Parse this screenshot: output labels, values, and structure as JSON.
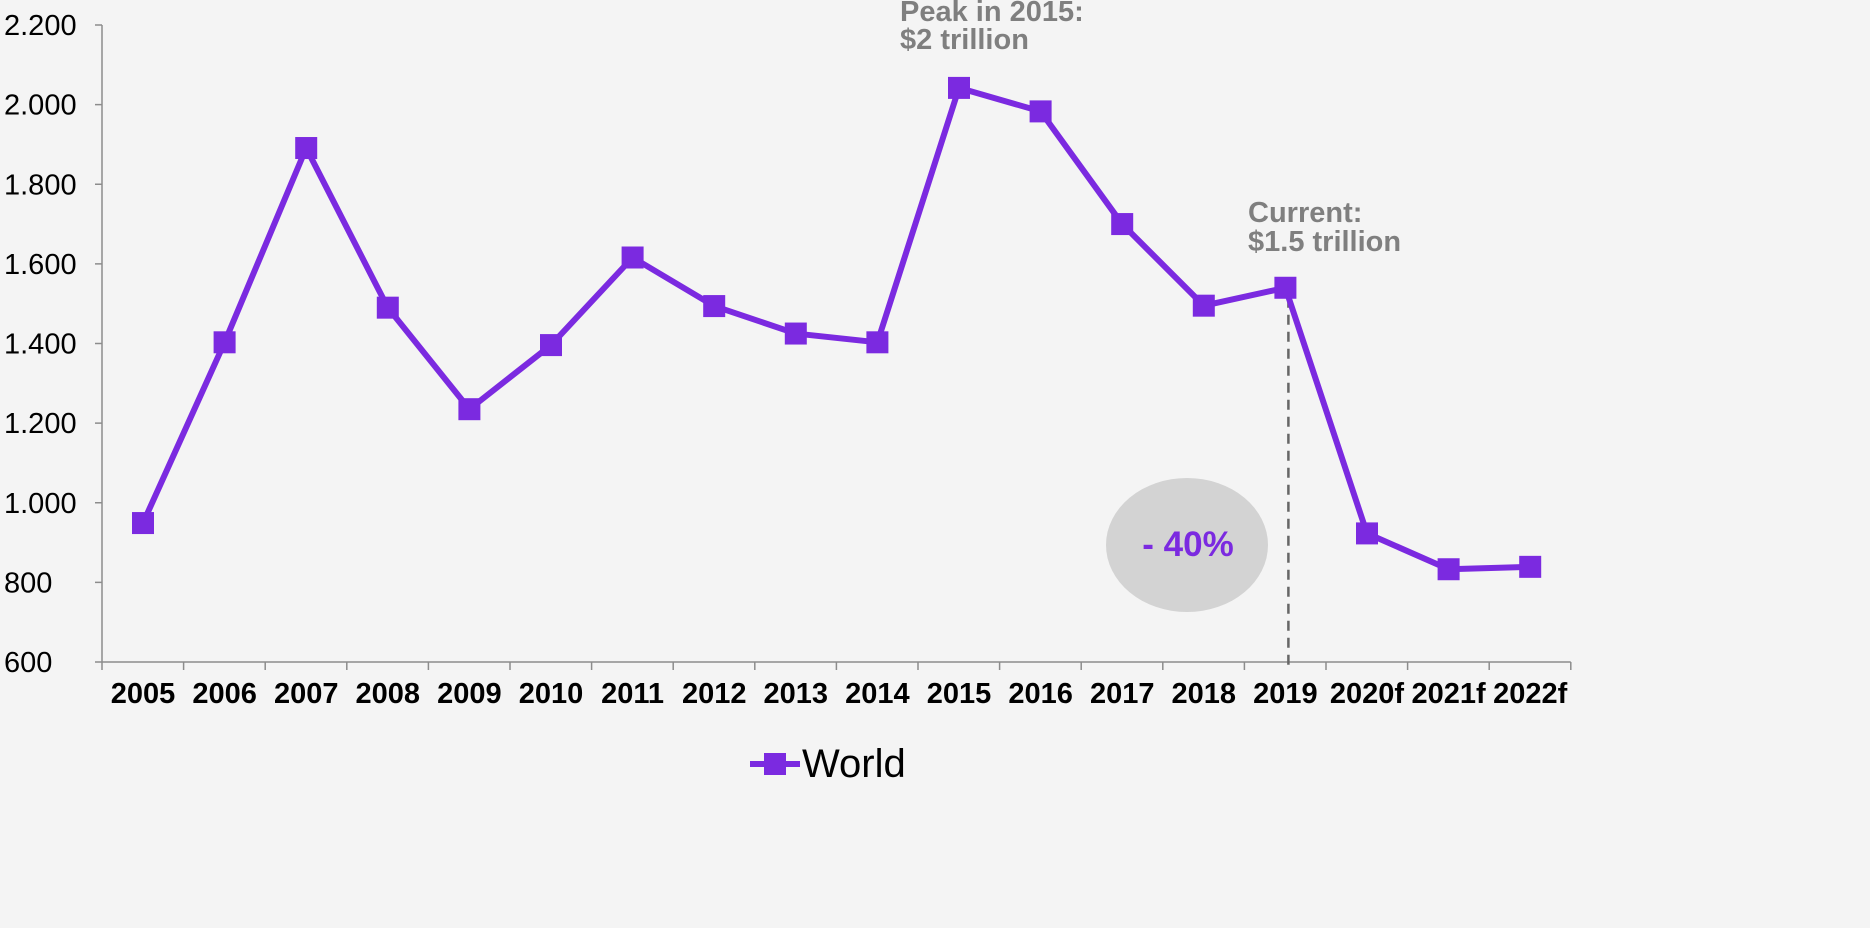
{
  "chart_data": {
    "type": "line",
    "categories": [
      "2005",
      "2006",
      "2007",
      "2008",
      "2009",
      "2010",
      "2011",
      "2012",
      "2013",
      "2014",
      "2015",
      "2016",
      "2017",
      "2018",
      "2019",
      "2020f",
      "2021f",
      "2022f"
    ],
    "series": [
      {
        "name": "World",
        "values": [
          949,
          1403,
          1891,
          1490,
          1235,
          1396,
          1616,
          1494,
          1425,
          1403,
          2042,
          1983,
          1700,
          1495,
          1540,
          923,
          833,
          839
        ]
      }
    ],
    "ylim": [
      600,
      2200
    ],
    "yticks": [
      "600",
      "800",
      "1.000",
      "1.200",
      "1.400",
      "1.600",
      "1.800",
      "2.000",
      "2.200"
    ],
    "ytick_values": [
      600,
      800,
      1000,
      1200,
      1400,
      1600,
      1800,
      2000,
      2200
    ],
    "grid": false,
    "legend_position": "bottom-center",
    "annotations": {
      "peak_line1": "Peak in 2015:",
      "peak_line2": "$2 trillion",
      "current_line1": "Current:",
      "current_line2": "$1.5 trillion",
      "drop_badge": "- 40%"
    },
    "marker_category": "2019",
    "colors": {
      "series": "#7b2ae0",
      "annotation": "#7f7f7f",
      "badge_fill": "#d3d3d3",
      "axis": "#8c8c8c"
    }
  }
}
